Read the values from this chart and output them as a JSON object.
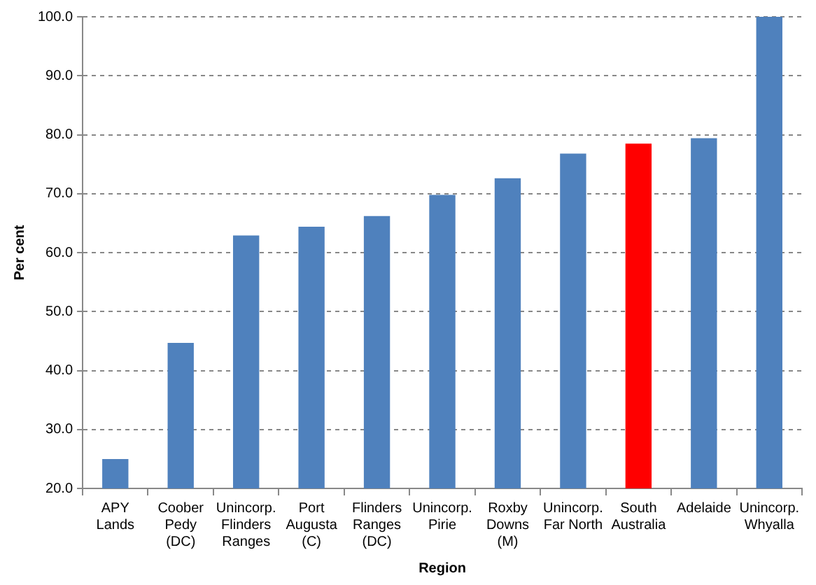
{
  "chart_data": {
    "type": "bar",
    "xlabel": "Region",
    "ylabel": "Per cent",
    "categories": [
      "APY Lands",
      "Coober Pedy (DC)",
      "Unincorp. Flinders Ranges",
      "Port Augusta (C)",
      "Flinders Ranges (DC)",
      "Unincorp. Pirie",
      "Roxby Downs (M)",
      "Unincorp. Far North",
      "South Australia",
      "Adelaide",
      "Unincorp. Whyalla"
    ],
    "values": [
      25.0,
      44.7,
      62.9,
      64.4,
      66.2,
      69.8,
      72.6,
      76.8,
      78.5,
      79.4,
      100.0
    ],
    "colors": [
      "#4f81bd",
      "#4f81bd",
      "#4f81bd",
      "#4f81bd",
      "#4f81bd",
      "#4f81bd",
      "#4f81bd",
      "#4f81bd",
      "#ff0000",
      "#4f81bd",
      "#4f81bd"
    ],
    "ylim": [
      20,
      100
    ],
    "yticks": [
      {
        "value": 20,
        "label": "20.0"
      },
      {
        "value": 30,
        "label": "30.0"
      },
      {
        "value": 40,
        "label": "40.0"
      },
      {
        "value": 50,
        "label": "50.0"
      },
      {
        "value": 60,
        "label": "60.0"
      },
      {
        "value": 70,
        "label": "70.0"
      },
      {
        "value": 80,
        "label": "80.0"
      },
      {
        "value": 90,
        "label": "90.0"
      },
      {
        "value": 100,
        "label": "100.0"
      }
    ],
    "grid": "y",
    "legend": false
  }
}
